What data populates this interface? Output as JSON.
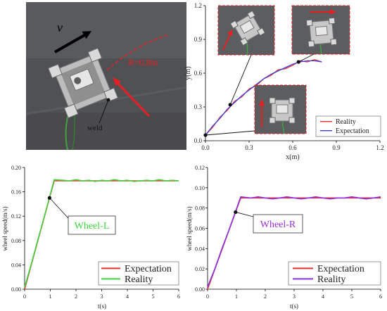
{
  "photo": {
    "velocity_label": "v",
    "radius_label": "R=0.8m",
    "weld_label": "weld"
  },
  "chart_data": [
    {
      "type": "line",
      "xlabel": "x(m)",
      "ylabel": "y(m)",
      "xlim": [
        0,
        1.2
      ],
      "ylim": [
        0,
        1.2
      ],
      "xticks": [
        0,
        0.3,
        0.6,
        0.9,
        1.2
      ],
      "xtick_labels": [
        "0.0",
        "0.3",
        "0.6",
        "0.9",
        "1.2"
      ],
      "yticks": [
        0,
        0.3,
        0.6,
        0.9,
        1.2
      ],
      "ytick_labels": [
        "0.0",
        "0.3",
        "0.6",
        "0.9",
        "1.2"
      ],
      "grid": false,
      "legend": "bottom-right",
      "series": [
        {
          "name": "Reality",
          "color": "#e8322e",
          "x": [
            0,
            0.05,
            0.1,
            0.15,
            0.2,
            0.25,
            0.3,
            0.35,
            0.4,
            0.45,
            0.5,
            0.55,
            0.6,
            0.65,
            0.7,
            0.75,
            0.8
          ],
          "y": [
            0.05,
            0.12,
            0.21,
            0.27,
            0.35,
            0.39,
            0.46,
            0.49,
            0.55,
            0.58,
            0.63,
            0.64,
            0.67,
            0.71,
            0.7,
            0.72,
            0.7
          ]
        },
        {
          "name": "Expectation",
          "color": "#3b3bd9",
          "x": [
            0,
            0.05,
            0.1,
            0.15,
            0.2,
            0.25,
            0.3,
            0.35,
            0.4,
            0.45,
            0.5,
            0.55,
            0.6,
            0.65,
            0.7,
            0.75,
            0.8
          ],
          "y": [
            0.05,
            0.13,
            0.2,
            0.28,
            0.34,
            0.4,
            0.45,
            0.5,
            0.55,
            0.59,
            0.62,
            0.65,
            0.68,
            0.7,
            0.71,
            0.71,
            0.7
          ]
        }
      ],
      "markers": [
        {
          "x": 0.0,
          "y": 0.05
        },
        {
          "x": 0.17,
          "y": 0.32
        },
        {
          "x": 0.64,
          "y": 0.7
        }
      ]
    },
    {
      "type": "line",
      "xlabel": "t(s)",
      "ylabel": "wheel speed(m/s)",
      "xlim": [
        0,
        6
      ],
      "ylim": [
        0,
        0.2
      ],
      "xticks": [
        0,
        1,
        2,
        3,
        4,
        5,
        6
      ],
      "xtick_labels": [
        "0",
        "1",
        "2",
        "3",
        "4",
        "5",
        "6"
      ],
      "yticks": [
        0,
        0.04,
        0.08,
        0.12,
        0.16,
        0.2
      ],
      "ytick_labels": [
        "0.00",
        "0.04",
        "0.08",
        "0.12",
        "0.16",
        "0.20"
      ],
      "grid": false,
      "legend": "bottom-right",
      "series": [
        {
          "name": "Expectation",
          "color": "#e8322e",
          "x": [
            0,
            1.15,
            6
          ],
          "y": [
            0,
            0.178,
            0.178
          ]
        },
        {
          "name": "Reality",
          "color": "#3ed43e",
          "x": [
            0,
            0.25,
            0.5,
            0.75,
            1.0,
            1.15,
            1.5,
            1.75,
            2.0,
            2.25,
            2.5,
            2.75,
            3.0,
            3.25,
            3.5,
            3.75,
            4.0,
            4.25,
            4.5,
            4.75,
            5.0,
            5.25,
            5.5,
            5.75,
            6.0
          ],
          "y": [
            0.003,
            0.04,
            0.079,
            0.117,
            0.156,
            0.18,
            0.179,
            0.178,
            0.18,
            0.178,
            0.179,
            0.177,
            0.179,
            0.178,
            0.18,
            0.178,
            0.179,
            0.177,
            0.178,
            0.179,
            0.178,
            0.18,
            0.178,
            0.179,
            0.178
          ]
        }
      ],
      "annotation": {
        "label": "Wheel-L",
        "color": "#3ed43e",
        "x": 0.97,
        "y": 0.15
      }
    },
    {
      "type": "line",
      "xlabel": "t(s)",
      "ylabel": "wheel speed(m/s)",
      "xlim": [
        0,
        6
      ],
      "ylim": [
        0,
        0.12
      ],
      "xticks": [
        0,
        1,
        2,
        3,
        4,
        5,
        6
      ],
      "xtick_labels": [
        "0",
        "1",
        "2",
        "3",
        "4",
        "5",
        "6"
      ],
      "yticks": [
        0,
        0.02,
        0.04,
        0.06,
        0.08,
        0.1,
        0.12
      ],
      "ytick_labels": [
        "0.00",
        "0.02",
        "0.04",
        "0.06",
        "0.08",
        "0.10",
        "0.12"
      ],
      "grid": false,
      "legend": "bottom-right",
      "series": [
        {
          "name": "Expectation",
          "color": "#e8322e",
          "x": [
            0,
            1.15,
            6
          ],
          "y": [
            0,
            0.09,
            0.09
          ]
        },
        {
          "name": "Reality",
          "color": "#8b2fe0",
          "x": [
            0,
            0.25,
            0.5,
            0.75,
            1.0,
            1.15,
            1.5,
            1.75,
            2.0,
            2.25,
            2.5,
            2.75,
            3.0,
            3.25,
            3.5,
            3.75,
            4.0,
            4.25,
            4.5,
            4.75,
            5.0,
            5.25,
            5.5,
            5.75,
            6.0
          ],
          "y": [
            0.002,
            0.02,
            0.04,
            0.059,
            0.079,
            0.091,
            0.09,
            0.091,
            0.09,
            0.089,
            0.09,
            0.091,
            0.09,
            0.089,
            0.09,
            0.091,
            0.09,
            0.089,
            0.09,
            0.09,
            0.091,
            0.09,
            0.089,
            0.09,
            0.091
          ]
        }
      ],
      "annotation": {
        "label": "Wheel-R",
        "color": "#9b30d9",
        "x": 0.97,
        "y": 0.076
      }
    }
  ]
}
